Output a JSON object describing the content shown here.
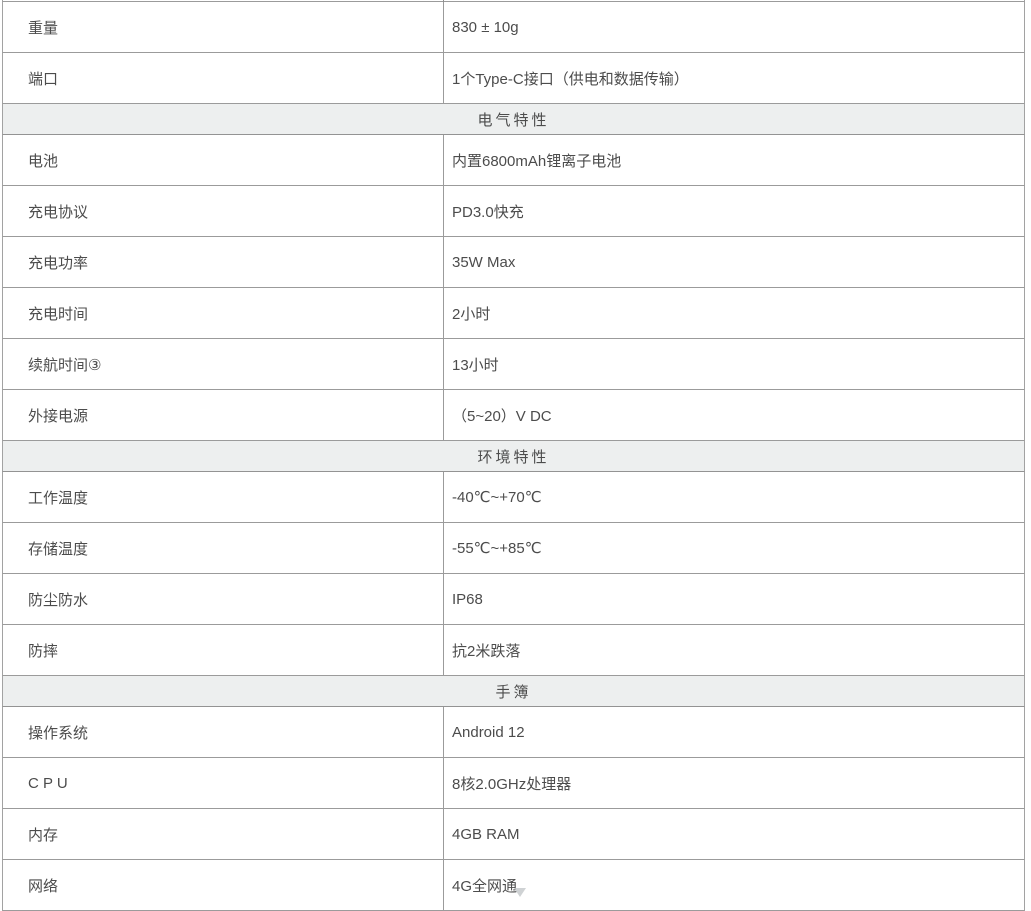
{
  "table": {
    "columns": [
      "property",
      "value"
    ],
    "rows": [
      {
        "type": "data",
        "label": "重量",
        "value": "830 ± 10g"
      },
      {
        "type": "data",
        "label": "端口",
        "value": "1个Type-C接口（供电和数据传输）"
      },
      {
        "type": "section",
        "title": "电气特性"
      },
      {
        "type": "data",
        "label": "电池",
        "value": "内置6800mAh锂离子电池"
      },
      {
        "type": "data",
        "label": "充电协议",
        "value": "PD3.0快充"
      },
      {
        "type": "data",
        "label": "充电功率",
        "value": "35W Max"
      },
      {
        "type": "data",
        "label": "充电时间",
        "value": "2小时"
      },
      {
        "type": "data",
        "label": "续航时间③",
        "value": "13小时"
      },
      {
        "type": "data",
        "label": "外接电源",
        "value": "（5~20）V DC"
      },
      {
        "type": "section",
        "title": "环境特性"
      },
      {
        "type": "data",
        "label": "工作温度",
        "value": "-40℃~+70℃"
      },
      {
        "type": "data",
        "label": "存储温度",
        "value": "-55℃~+85℃"
      },
      {
        "type": "data",
        "label": "防尘防水",
        "value": "IP68"
      },
      {
        "type": "data",
        "label": "防摔",
        "value": "抗2米跌落"
      },
      {
        "type": "section",
        "title": "手簿"
      },
      {
        "type": "data",
        "label": "操作系统",
        "value": "Android 12"
      },
      {
        "type": "data",
        "label": "C P U",
        "value": "8核2.0GHz处理器"
      },
      {
        "type": "data",
        "label": "内存",
        "value": "4GB RAM"
      },
      {
        "type": "data",
        "label": "网络",
        "value": "4G全网通"
      }
    ],
    "colors": {
      "section_bg": "#edefef",
      "border": "#9b9b9b",
      "text": "#4c4c4c"
    }
  }
}
